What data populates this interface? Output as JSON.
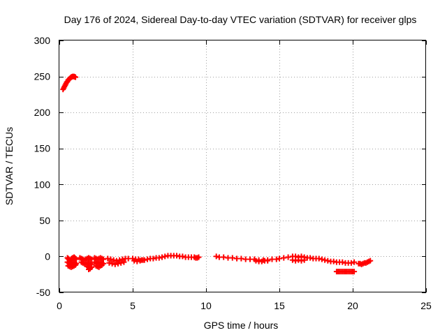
{
  "chart_data": {
    "type": "scatter",
    "title": "Day 176 of 2024, Sidereal Day-to-day VTEC variation (SDTVAR) for receiver glps",
    "xlabel": "GPS time / hours",
    "ylabel": "SDTVAR / TECUs",
    "xlim": [
      0,
      25
    ],
    "ylim": [
      -50,
      300
    ],
    "xticks": [
      0,
      5,
      10,
      15,
      20,
      25
    ],
    "yticks": [
      -50,
      0,
      50,
      100,
      150,
      200,
      250,
      300
    ],
    "grid": true,
    "marker": "plus",
    "color": "#ff0000",
    "series": [
      {
        "name": "SDTVAR",
        "x": [
          0.25,
          0.3,
          0.35,
          0.4,
          0.45,
          0.5,
          0.55,
          0.6,
          0.65,
          0.7,
          0.75,
          0.8,
          0.85,
          0.9,
          0.95,
          1.0,
          1.05,
          1.1,
          0.55,
          0.6,
          0.65,
          0.7,
          0.75,
          0.8,
          0.85,
          0.9,
          0.95,
          1.0,
          1.05,
          1.1,
          1.15,
          0.55,
          0.65,
          0.75,
          0.85,
          0.95,
          1.05,
          1.15,
          0.6,
          0.7,
          0.8,
          0.9,
          1.0,
          1.1,
          0.7,
          0.8,
          0.9,
          1.0,
          1.4,
          1.5,
          1.6,
          1.7,
          1.8,
          1.9,
          2.0,
          2.1,
          2.2,
          1.5,
          1.6,
          1.7,
          1.8,
          1.9,
          2.0,
          2.1,
          2.2,
          1.9,
          2.0,
          2.1,
          2.2,
          2.0,
          2.1,
          2.4,
          2.5,
          2.6,
          2.7,
          2.8,
          2.9,
          3.0,
          2.4,
          2.5,
          2.6,
          2.7,
          2.8,
          2.9,
          3.0,
          2.5,
          2.6,
          2.7,
          2.8,
          2.9,
          3.3,
          3.5,
          3.7,
          3.9,
          4.1,
          4.3,
          4.5,
          4.7,
          3.4,
          3.6,
          3.8,
          4.0,
          4.2,
          4.4,
          5.0,
          5.2,
          5.4,
          5.6,
          5.8,
          6.0,
          6.2,
          6.4,
          6.6,
          6.8,
          7.0,
          7.2,
          5.1,
          5.3,
          5.5,
          5.7,
          7.4,
          7.6,
          7.8,
          8.0,
          8.2,
          8.4,
          8.6,
          8.8,
          9.0,
          9.2,
          9.3,
          9.4,
          9.5,
          10.7,
          10.9,
          11.2,
          11.5,
          11.8,
          12.1,
          12.4,
          12.7,
          13.0,
          13.3,
          13.6,
          13.9,
          14.2,
          14.5,
          14.8,
          13.4,
          13.6,
          13.8,
          14.0,
          14.2,
          15.0,
          15.3,
          15.6,
          15.9,
          16.1,
          16.3,
          16.5,
          16.7,
          16.9,
          17.1,
          17.3,
          17.5,
          17.7,
          15.9,
          16.1,
          16.3,
          16.5,
          16.7,
          17.9,
          18.1,
          18.3,
          18.5,
          18.7,
          18.9,
          19.1,
          19.3,
          19.5,
          19.7,
          19.9,
          20.1,
          18.9,
          19.0,
          19.1,
          19.2,
          19.3,
          19.4,
          19.5,
          19.6,
          19.7,
          19.8,
          19.9,
          20.0,
          20.1,
          20.4,
          20.5,
          20.6,
          20.7,
          20.8,
          20.9,
          21.0,
          21.1,
          21.2
        ],
        "y": [
          232,
          234,
          236,
          238,
          240,
          242,
          243,
          245,
          246,
          247,
          248,
          249,
          249.5,
          250,
          250,
          250,
          249.5,
          249,
          -2,
          -3,
          -4,
          -5,
          -5,
          -4,
          -3,
          -2,
          -2,
          -1,
          -2,
          -3,
          -4,
          -8,
          -9,
          -10,
          -9,
          -8,
          -9,
          -10,
          -13,
          -14,
          -15,
          -14,
          -13,
          -12,
          -11,
          -12,
          -13,
          -12,
          -2,
          -3,
          -4,
          -5,
          -4,
          -3,
          -2,
          -3,
          -4,
          -8,
          -9,
          -10,
          -11,
          -10,
          -9,
          -10,
          -11,
          -14,
          -15,
          -16,
          -15,
          -18,
          -17,
          -2,
          -3,
          -4,
          -3,
          -2,
          -3,
          -4,
          -8,
          -9,
          -10,
          -9,
          -8,
          -9,
          -10,
          -13,
          -14,
          -15,
          -13,
          -12,
          -3,
          -4,
          -5,
          -6,
          -5,
          -4,
          -3,
          -3,
          -9,
          -10,
          -11,
          -10,
          -9,
          -8,
          -3,
          -4,
          -4,
          -5,
          -5,
          -4,
          -3,
          -3,
          -2,
          -2,
          -1,
          0,
          -6,
          -7,
          -6,
          -5,
          1,
          1,
          1,
          1,
          0,
          0,
          -1,
          -1,
          -1,
          -1,
          -2,
          -2,
          -1,
          0,
          -1,
          -1,
          -2,
          -2,
          -3,
          -3,
          -4,
          -4,
          -4,
          -5,
          -5,
          -5,
          -4,
          -4,
          -6,
          -7,
          -7,
          -6,
          -6,
          -3,
          -2,
          -1,
          0,
          0,
          -1,
          0,
          -1,
          -2,
          -2,
          -3,
          -3,
          -3,
          -5,
          -6,
          -5,
          -6,
          -5,
          -4,
          -5,
          -6,
          -7,
          -7,
          -8,
          -8,
          -8,
          -9,
          -9,
          -9,
          -8,
          -21,
          -21,
          -21,
          -21,
          -21,
          -21,
          -21,
          -21,
          -21,
          -21,
          -21,
          -21,
          -21,
          -10,
          -10,
          -11,
          -10,
          -9,
          -9,
          -8,
          -7,
          -6
        ]
      }
    ]
  }
}
